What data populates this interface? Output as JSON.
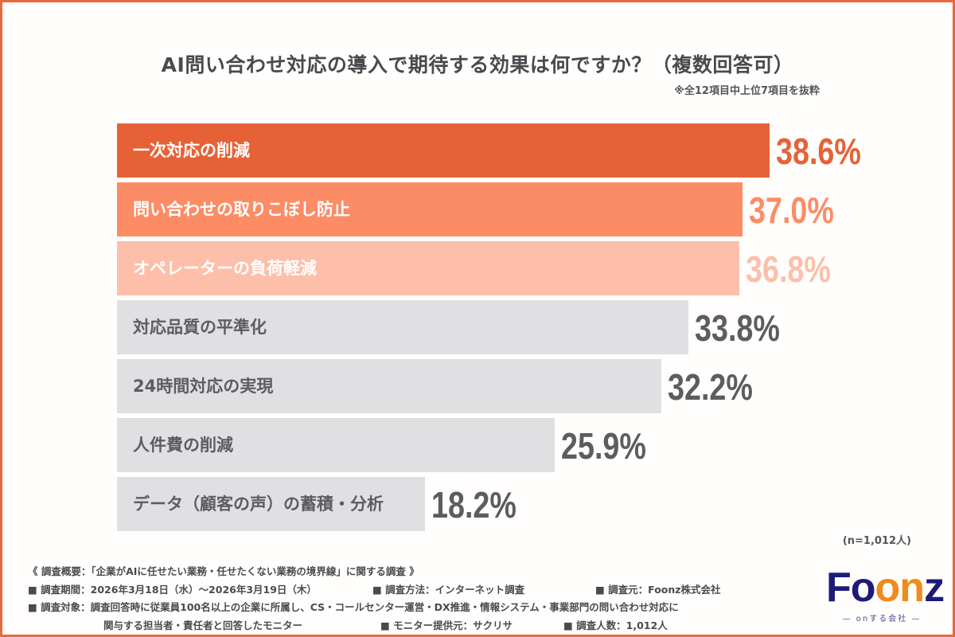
{
  "chart_data": {
    "type": "bar",
    "orientation": "horizontal",
    "title": "AI問い合わせ対応の導入で期待する効果は何ですか？（複数回答可）",
    "subtitle": "※全12項目中上位7項目を抜粋",
    "categories": [
      "一次対応の削減",
      "問い合わせの取りこぼし防止",
      "オペレーターの負荷軽減",
      "対応品質の平準化",
      "24時間対応の実現",
      "人件費の削減",
      "データ（顧客の声）の蓄積・分析"
    ],
    "values": [
      38.6,
      37.0,
      36.8,
      33.8,
      32.2,
      25.9,
      18.2
    ],
    "value_labels": [
      "38.6%",
      "37.0%",
      "36.8%",
      "33.8%",
      "32.2%",
      "25.9%",
      "18.2%"
    ],
    "unit": "%",
    "xlim": [
      0,
      38.6
    ],
    "grid": false,
    "bar_colors": [
      "#e66236",
      "#fc8c66",
      "#fdbfaa",
      "#e0dfe1",
      "#e0dfe1",
      "#e0dfe1",
      "#e0dfe1"
    ],
    "label_colors": [
      "#ffffff",
      "#ffffff",
      "#ffffff",
      "#5e5c60",
      "#5e5c60",
      "#5e5c60",
      "#5e5c60"
    ],
    "value_colors": [
      "#e66236",
      "#fc8c66",
      "#fdbfaa",
      "#5e5c60",
      "#5e5c60",
      "#5e5c60",
      "#5e5c60"
    ],
    "sample_size": "(n=1,012人)"
  },
  "footer": {
    "line1": "《 調査概要：「企業がAIに任せたい業務・任せたくない業務の境界線」に関する調査 》",
    "period": "■ 調査期間：2026年3月18日（水）〜2026年3月19日（木）",
    "method": "■ 調査方法：インターネット調査",
    "source": "■ 調査元：Foonz株式会社",
    "target": "■ 調査対象：調査回答時に従業員100名以上の企業に所属し、CS・コールセンター運営・DX推進・情報システム・事業部門の問い合わせ対応に",
    "target2": "関与する担当者・責任者と回答したモニター",
    "provider": "■ モニター提供元：サクリサ",
    "count": "■ 調査人数：1,012人"
  },
  "logo": {
    "word": "Foonz",
    "tagline": "— onする会社 —"
  },
  "accent_color": "#e8693d"
}
